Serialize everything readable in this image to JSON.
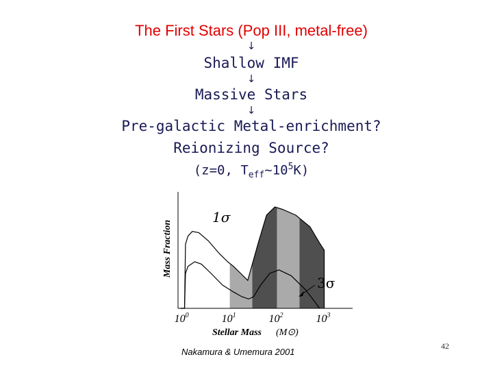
{
  "slide": {
    "title": "The First Stars (Pop III, metal-free)",
    "arrow_glyph": "↓",
    "steps": {
      "s1": "Shallow IMF",
      "s2": "Massive Stars",
      "s3": "Pre-galactic Metal-enrichment?",
      "s4": "Reionizing Source?",
      "s5_prefix": "(z=0, T",
      "s5_sub": "eff",
      "s5_mid": "~10",
      "s5_sup": "5",
      "s5_suffix": "K)"
    },
    "credit": "Nakamura & Umemura 2001",
    "page_number": "42"
  },
  "chart_data": {
    "type": "area",
    "title": "",
    "xlabel": "Stellar Mass",
    "xunit": "(M⊙)",
    "ylabel": "Mass Fraction",
    "x_scale": "log",
    "xlim": [
      0.8,
      4000
    ],
    "ylim": [
      0,
      1
    ],
    "x_ticks": [
      {
        "base": "10",
        "exp": "0",
        "value": 1
      },
      {
        "base": "10",
        "exp": "1",
        "value": 10
      },
      {
        "base": "10",
        "exp": "2",
        "value": 100
      },
      {
        "base": "10",
        "exp": "3",
        "value": 1000
      }
    ],
    "annotations": {
      "upper": "1σ",
      "lower": "3σ"
    },
    "bands": [
      {
        "x0": 10,
        "x1": 30,
        "shade": "light"
      },
      {
        "x0": 30,
        "x1": 100,
        "shade": "dark"
      },
      {
        "x0": 100,
        "x1": 300,
        "shade": "light"
      },
      {
        "x0": 300,
        "x1": 1000,
        "shade": "dark"
      }
    ],
    "colors": {
      "light": "#aaaaaa",
      "dark": "#4f4f4f",
      "curve": "#000000"
    },
    "series": [
      {
        "name": "1σ",
        "points": [
          [
            0.9,
            0
          ],
          [
            1.1,
            0
          ],
          [
            1.15,
            0.55
          ],
          [
            1.3,
            0.62
          ],
          [
            1.6,
            0.66
          ],
          [
            2.2,
            0.65
          ],
          [
            3.5,
            0.58
          ],
          [
            6,
            0.47
          ],
          [
            9,
            0.4
          ],
          [
            12,
            0.36
          ],
          [
            17,
            0.3
          ],
          [
            24,
            0.24
          ],
          [
            40,
            0.56
          ],
          [
            60,
            0.8
          ],
          [
            90,
            0.87
          ],
          [
            130,
            0.85
          ],
          [
            250,
            0.8
          ],
          [
            500,
            0.7
          ],
          [
            800,
            0.56
          ],
          [
            1000,
            0.5
          ],
          [
            1000,
            0
          ]
        ]
      },
      {
        "name": "3σ",
        "points": [
          [
            0.9,
            0
          ],
          [
            1.1,
            0
          ],
          [
            1.15,
            0.3
          ],
          [
            1.3,
            0.36
          ],
          [
            1.8,
            0.4
          ],
          [
            2.5,
            0.38
          ],
          [
            4,
            0.3
          ],
          [
            7,
            0.2
          ],
          [
            12,
            0.14
          ],
          [
            18,
            0.1
          ],
          [
            25,
            0.08
          ],
          [
            32,
            0.1
          ],
          [
            45,
            0.2
          ],
          [
            70,
            0.3
          ],
          [
            110,
            0.33
          ],
          [
            200,
            0.28
          ],
          [
            400,
            0.16
          ],
          [
            650,
            0.05
          ],
          [
            800,
            0
          ]
        ]
      }
    ]
  }
}
